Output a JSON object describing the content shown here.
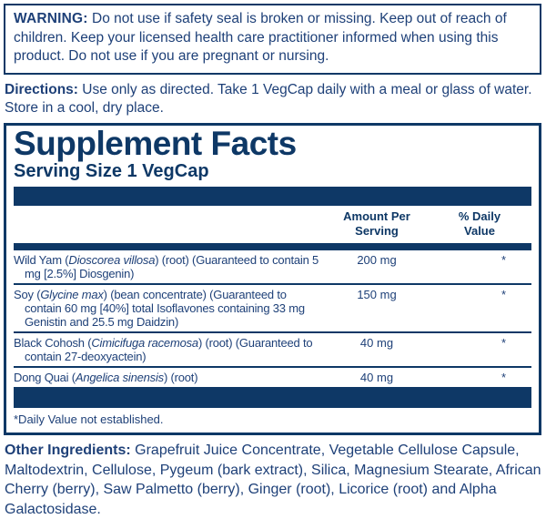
{
  "colors": {
    "navy": "#0e3866",
    "ink": "#1e4078",
    "background": "#ffffff"
  },
  "warning": {
    "label": "WARNING:",
    "text": "Do not use if safety seal is broken or missing. Keep out of reach of children. Keep your licensed health care practitioner informed when using this product. Do not use if you are pregnant or nursing."
  },
  "directions": {
    "label": "Directions:",
    "text": "Use only as directed. Take 1 VegCap daily with a meal or glass of water. Store in a cool, dry place."
  },
  "supplement_facts": {
    "title": "Supplement Facts",
    "serving_size": "Serving Size 1 VegCap",
    "columns": {
      "amount": "Amount Per Serving",
      "daily_value": "% Daily Value"
    },
    "rows": [
      {
        "name_parts": [
          {
            "text": "Wild Yam ("
          },
          {
            "text": "Dioscorea villosa",
            "italic": true
          },
          {
            "text": ") (root) (Guaranteed to contain 5 mg [2.5%] Diosgenin)"
          }
        ],
        "amount": "200 mg",
        "daily_value": "*"
      },
      {
        "name_parts": [
          {
            "text": "Soy ("
          },
          {
            "text": "Glycine max",
            "italic": true
          },
          {
            "text": ") (bean concentrate) (Guaranteed to contain 60 mg [40%] total Isoflavones containing 33 mg Genistin and 25.5 mg Daidzin)"
          }
        ],
        "amount": "150 mg",
        "daily_value": "*"
      },
      {
        "name_parts": [
          {
            "text": "Black Cohosh ("
          },
          {
            "text": "Cimicifuga racemosa",
            "italic": true
          },
          {
            "text": ") (root) (Guaranteed to contain 27-deoxyactein)"
          }
        ],
        "amount": "40 mg",
        "daily_value": "*"
      },
      {
        "name_parts": [
          {
            "text": "Dong Quai ("
          },
          {
            "text": "Angelica sinensis",
            "italic": true
          },
          {
            "text": ") (root)"
          }
        ],
        "amount": "40 mg",
        "daily_value": "*"
      }
    ],
    "footnote": "*Daily Value not established."
  },
  "other_ingredients": {
    "label": "Other Ingredients:",
    "text": "Grapefruit Juice Concentrate, Vegetable Cellulose Capsule, Maltodextrin, Cellulose, Pygeum (bark extract), Silica, Magnesium Stearate, African Cherry (berry), Saw Palmetto (berry), Ginger (root), Licorice (root) and Alpha Galactosidase."
  }
}
